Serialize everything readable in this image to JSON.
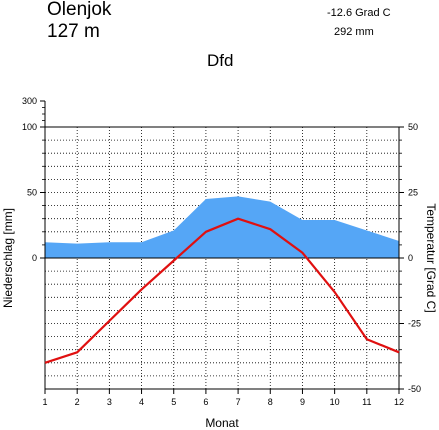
{
  "header": {
    "station_name": "Olenjok",
    "elevation": "127  m",
    "annual_temperature": "-12.6 Grad C",
    "annual_precipitation": "292 mm",
    "climate_class": "Dfd"
  },
  "chart_data": {
    "type": "line",
    "title": "",
    "xlabel": "Monat",
    "ylabel_left": "Niederschlag [mm]",
    "ylabel_right": "Temperatur [Grad C]",
    "categories": [
      1,
      2,
      3,
      4,
      5,
      6,
      7,
      8,
      9,
      10,
      11,
      12
    ],
    "x_tick_labels": [
      "1",
      "2",
      "3",
      "4",
      "5",
      "6",
      "7",
      "8",
      "9",
      "10",
      "11",
      "12"
    ],
    "precip_axis": {
      "tick_labels": [
        "0",
        "50",
        "100",
        "300"
      ],
      "tick_values": [
        0,
        50,
        100,
        300
      ],
      "scale": "linear to 100 mm, compressed 100-300 mm"
    },
    "temp_axis": {
      "tick_labels": [
        "-50",
        "-25",
        "0",
        "25",
        "50"
      ],
      "tick_values": [
        -50,
        -25,
        0,
        25,
        50
      ],
      "ylim": [
        -50,
        50
      ]
    },
    "grid": true,
    "series": [
      {
        "kind": "area",
        "color": "#55a6f6",
        "values": [
          12,
          11,
          12,
          12,
          21,
          45,
          47,
          43,
          29,
          29,
          21,
          13
        ]
      },
      {
        "kind": "line",
        "color": "#e01010",
        "values": [
          -40,
          -36,
          -24,
          -12,
          -1,
          10,
          15,
          11,
          2,
          -13,
          -31,
          -36
        ]
      }
    ]
  }
}
